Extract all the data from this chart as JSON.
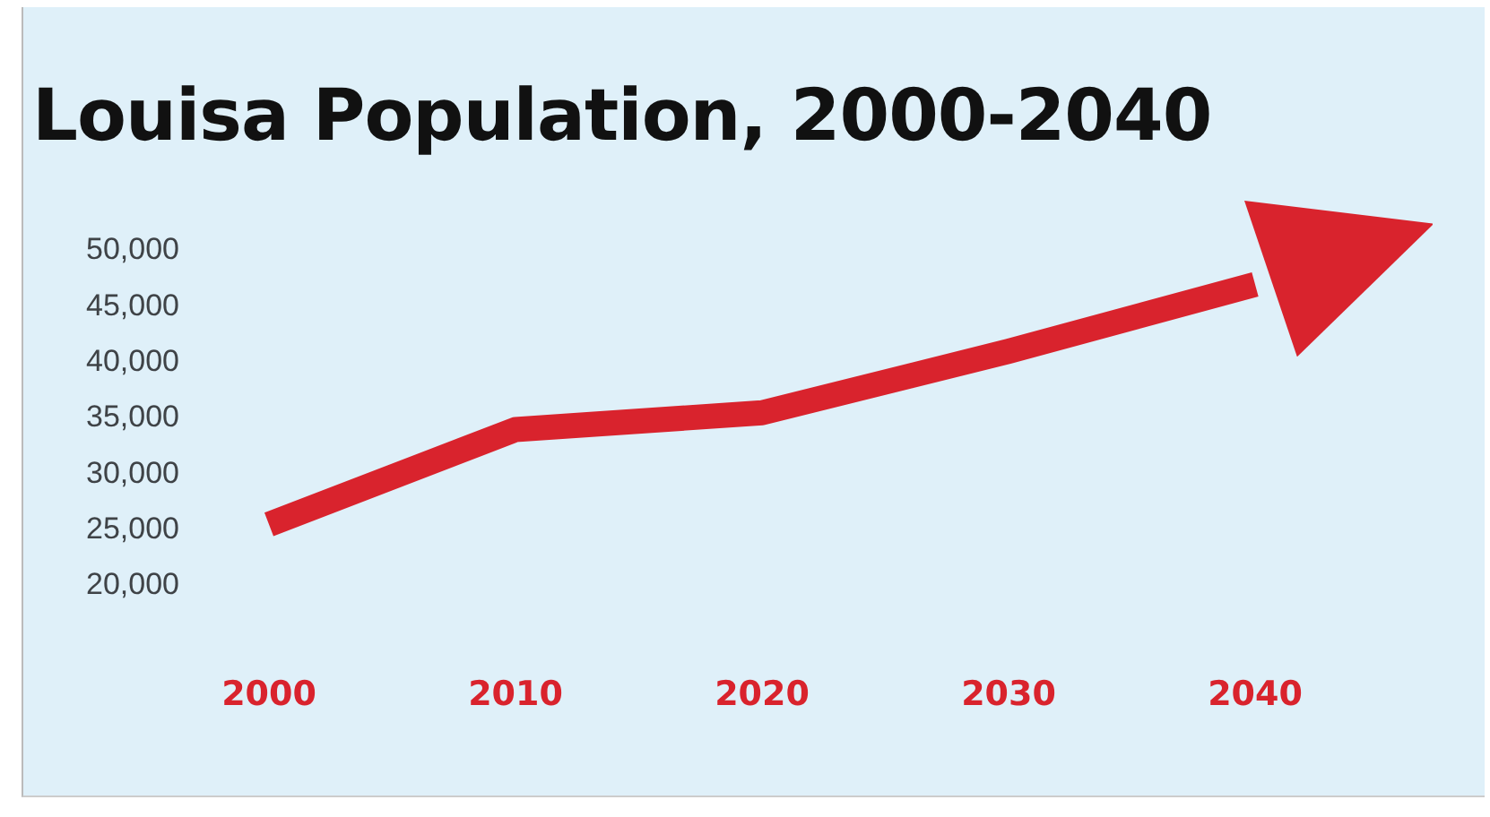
{
  "chart_data": {
    "type": "line",
    "title": "Louisa Population, 2000-2040",
    "categories": [
      "2000",
      "2010",
      "2020",
      "2030",
      "2040"
    ],
    "series": [
      {
        "color": "#d9232d",
        "values": [
          25500,
          34000,
          35500,
          41000,
          47000
        ]
      }
    ],
    "ylim": [
      20000,
      50000
    ],
    "yticks": [
      {
        "value": 20000,
        "label": "20,000"
      },
      {
        "value": 25000,
        "label": "25,000"
      },
      {
        "value": 30000,
        "label": "30,000"
      },
      {
        "value": 35000,
        "label": "35,000"
      },
      {
        "value": 40000,
        "label": "40,000"
      },
      {
        "value": 45000,
        "label": "45,000"
      },
      {
        "value": 50000,
        "label": "50,000"
      }
    ],
    "grid": false,
    "legend": false,
    "marker": "none",
    "line_style": "solid"
  }
}
